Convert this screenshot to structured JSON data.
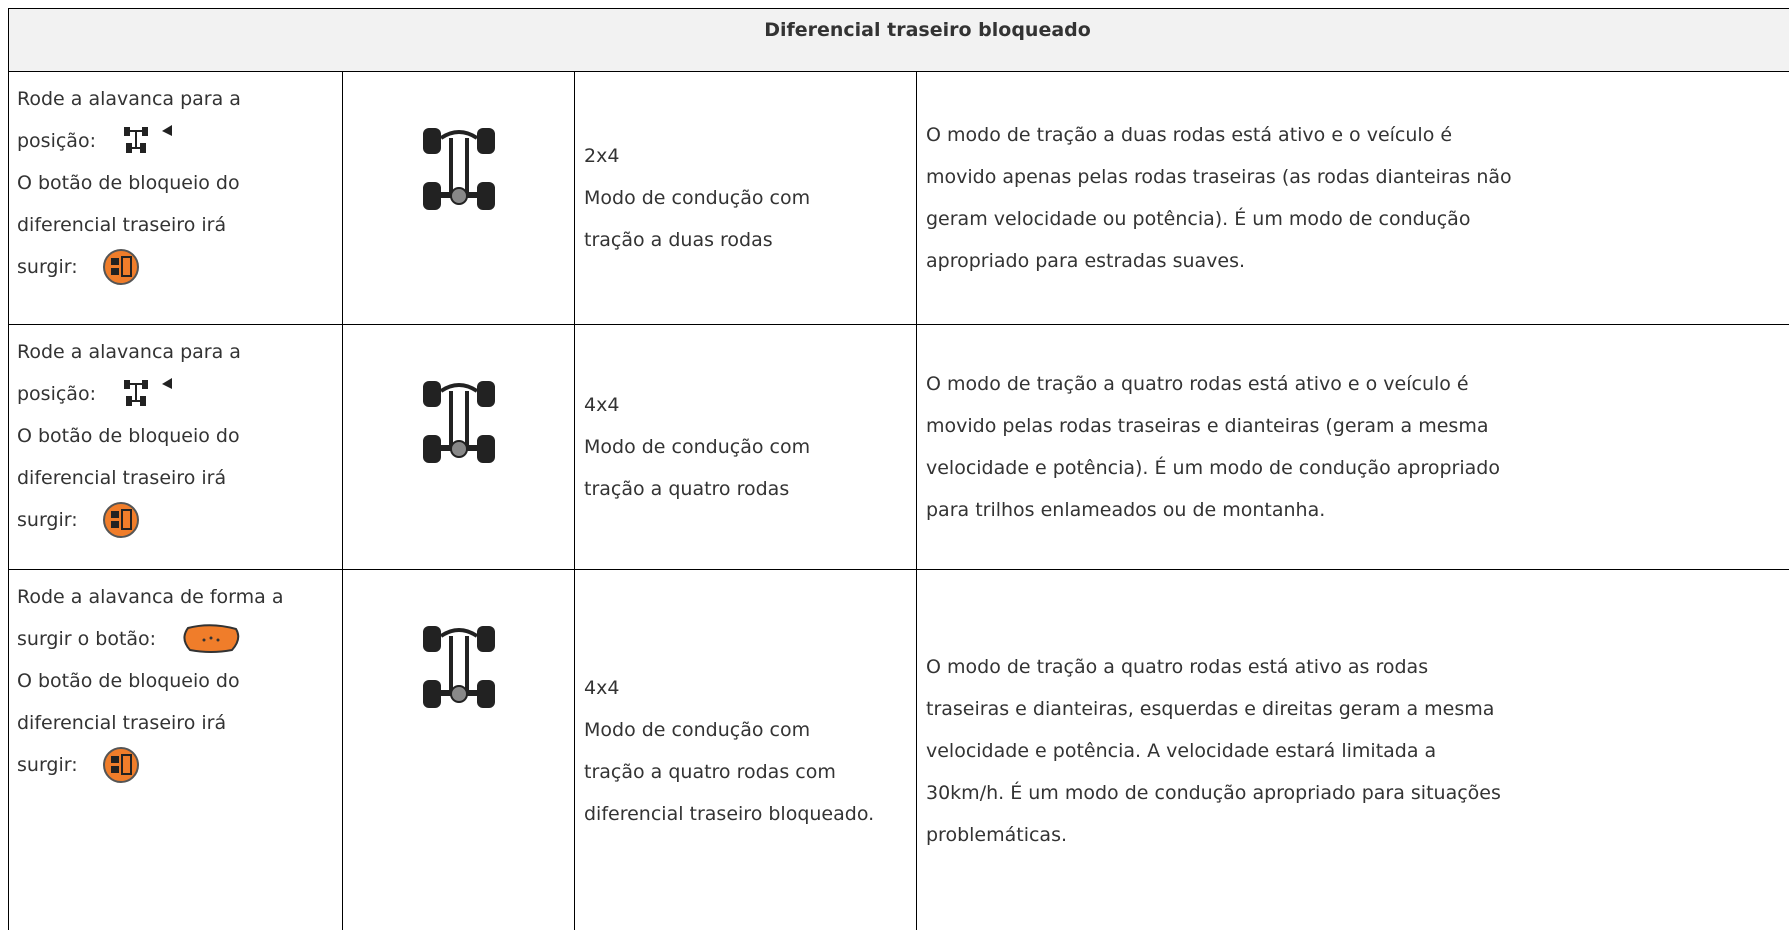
{
  "header": {
    "title": "Diferencial traseiro bloqueado"
  },
  "table": {
    "rows": [
      {
        "instruction": [
          "Rode a alavanca para a",
          "posição:",
          "O botão de bloqueio do",
          "diferencial traseiro  irá",
          "surgir:"
        ],
        "mode": [
          "2x4",
          "Modo de condução com",
          "tração a duas rodas"
        ],
        "description": [
          "O modo de tração a duas rodas está ativo e o veículo é",
          "movido apenas pelas rodas traseiras (as rodas dianteiras não",
          "geram velocidade ou potência). É um modo de condução",
          "apropriado para estradas suaves."
        ]
      },
      {
        "instruction": [
          "Rode a alavanca para a",
          "posição:",
          "O botão de bloqueio do",
          "diferencial traseiro  irá",
          "surgir:"
        ],
        "mode": [
          "4x4",
          "Modo de condução com",
          "tração a quatro rodas"
        ],
        "description": [
          "O modo de tração a quatro rodas está ativo e o veículo é",
          "movido pelas rodas traseiras e dianteiras (geram a mesma",
          "velocidade e potência). É um modo de condução apropriado",
          "para trilhos enlameados ou de montanha."
        ]
      },
      {
        "instruction": [
          "Rode a alavanca de forma a",
          "surgir o botão:",
          "O botão de bloqueio do",
          "diferencial traseiro  irá",
          "surgir:"
        ],
        "mode": [
          "4x4",
          "Modo de condução com",
          "tração a quatro rodas com",
          "diferencial traseiro bloqueado."
        ],
        "description": [
          "O modo de tração a quatro rodas está ativo as rodas",
          "traseiras e dianteiras, esquerdas e direitas geram a mesma",
          "velocidade e potência. A velocidade estará limitada a",
          "30km/h. É um modo de condução apropriado para situações",
          "problemáticas."
        ]
      }
    ]
  }
}
